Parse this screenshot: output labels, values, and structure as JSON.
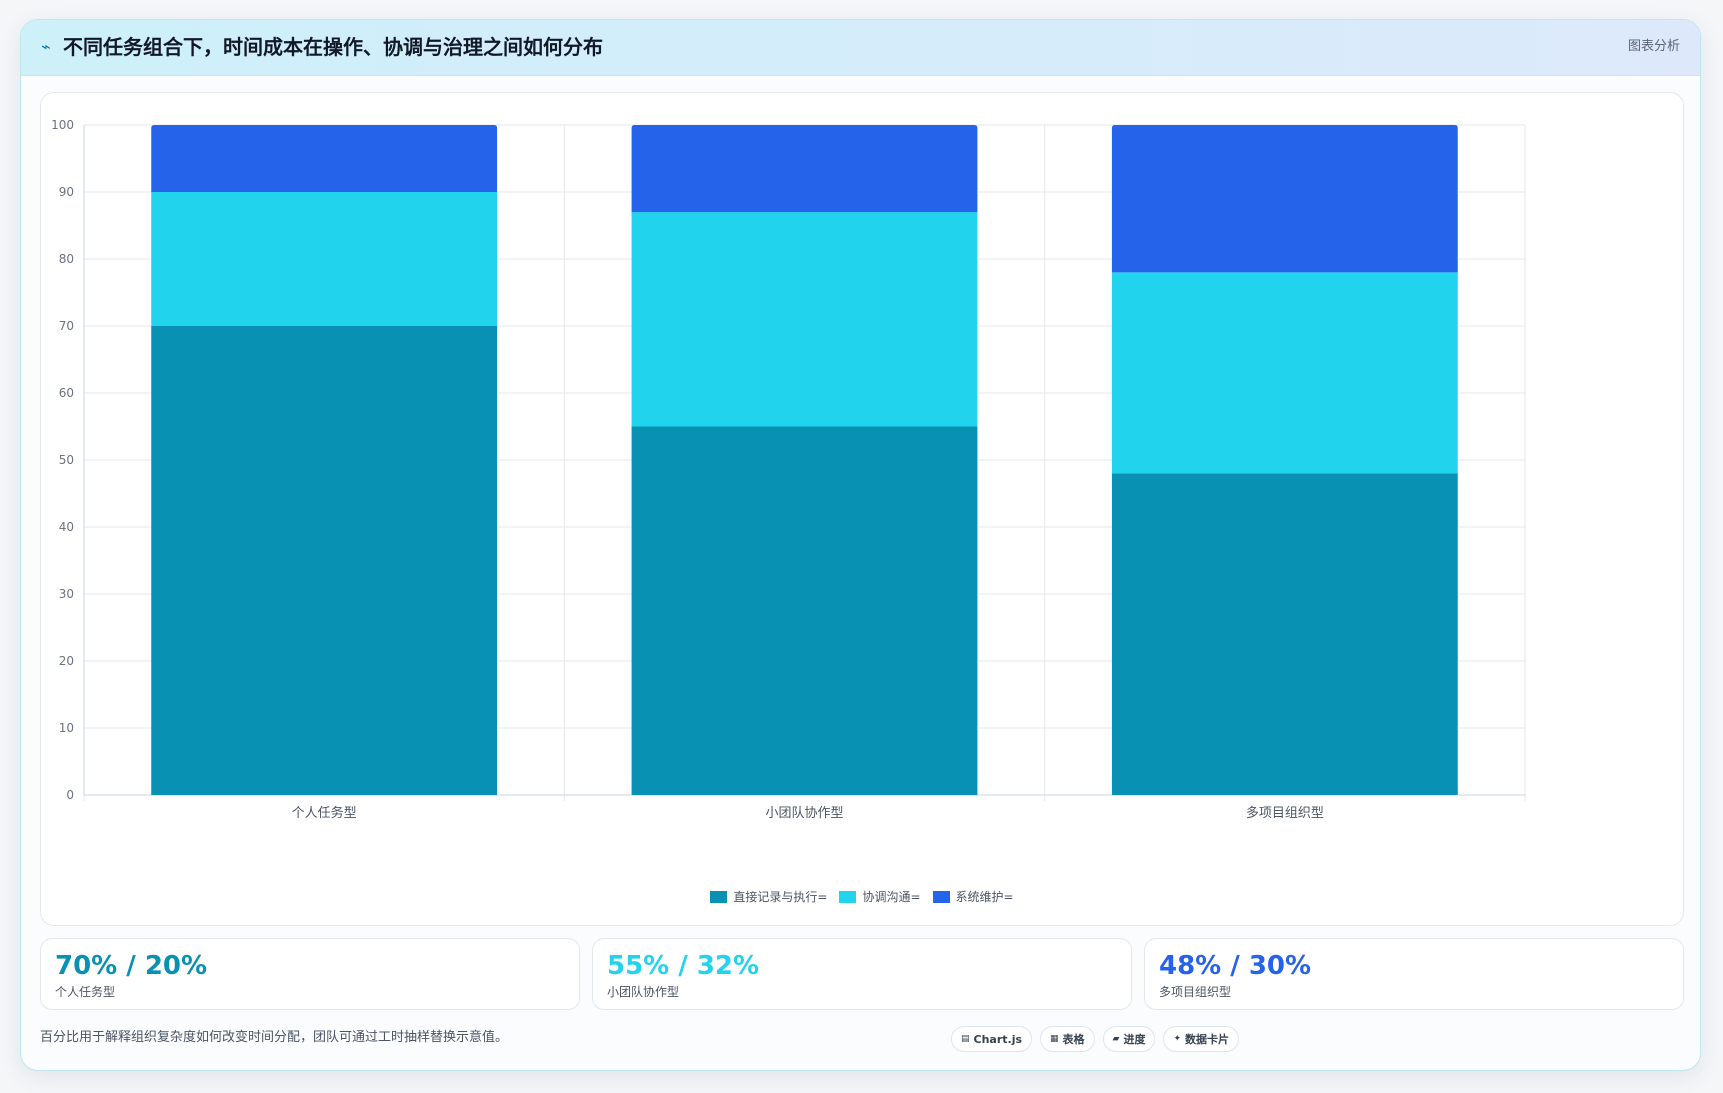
{
  "header": {
    "icon": "line-chart-icon",
    "title": "不同任务组合下，时间成本在操作、协调与治理之间如何分布",
    "tag": "图表分析"
  },
  "colors": {
    "series_execution": "#0891b2",
    "series_communication": "#22d3ee",
    "series_maintenance": "#2563eb",
    "grid": "#e5e7eb",
    "axis": "#cbd5e1",
    "tick_text": "#6b7280"
  },
  "chart_data": {
    "type": "bar",
    "stacked": true,
    "categories": [
      "个人任务型",
      "小团队协作型",
      "多项目组织型"
    ],
    "series": [
      {
        "name": "直接记录与执行=",
        "values": [
          70,
          55,
          48
        ],
        "color": "#0891b2"
      },
      {
        "name": "协调沟通=",
        "values": [
          20,
          32,
          30
        ],
        "color": "#22d3ee"
      },
      {
        "name": "系统维护=",
        "values": [
          10,
          13,
          22
        ],
        "color": "#2563eb"
      }
    ],
    "ylim": [
      0,
      100
    ],
    "yticks": [
      0,
      10,
      20,
      30,
      40,
      50,
      60,
      70,
      80,
      90,
      100
    ],
    "grid": true,
    "legend": "bottom-center"
  },
  "stats": [
    {
      "value": "70% / 20%",
      "label": "个人任务型",
      "color": "#0891b2"
    },
    {
      "value": "55% / 32%",
      "label": "小团队协作型",
      "color": "#22d3ee"
    },
    {
      "value": "48% / 30%",
      "label": "多项目组织型",
      "color": "#2563eb"
    }
  ],
  "footnote": "百分比用于解释组织复杂度如何改变时间分配，团队可通过工时抽样替换示意值。",
  "chips": [
    {
      "icon": "chart-icon",
      "glyph": "▤",
      "label": "Chart.js"
    },
    {
      "icon": "table-icon",
      "glyph": "▦",
      "label": "表格"
    },
    {
      "icon": "progress-icon",
      "glyph": "▰",
      "label": "进度"
    },
    {
      "icon": "sparkle-icon",
      "glyph": "✦",
      "label": "数据卡片"
    }
  ]
}
